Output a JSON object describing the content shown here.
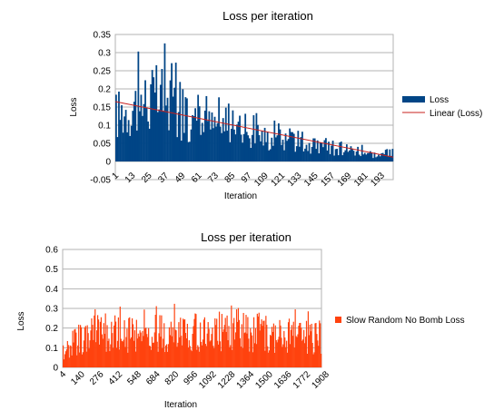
{
  "chart_data": [
    {
      "type": "bar",
      "title": "Loss per iteration",
      "xlabel": "Iteration",
      "ylabel": "Loss",
      "ylim": [
        -0.05,
        0.35
      ],
      "yticks": [
        "-0.05",
        "0",
        "0.05",
        "0.1",
        "0.15",
        "0.2",
        "0.25",
        "0.3",
        "0.35"
      ],
      "xtick_labels": [
        "1",
        "13",
        "25",
        "37",
        "49",
        "61",
        "73",
        "85",
        "97",
        "109",
        "121",
        "133",
        "145",
        "157",
        "169",
        "181",
        "193"
      ],
      "x_start": 1,
      "x_end": 200,
      "grid": true,
      "legend": "right",
      "series": [
        {
          "name": "Loss",
          "color": "#004586",
          "trend_points": [
            [
              1,
              0.16
            ],
            [
              20,
              0.21
            ],
            [
              36,
              0.22
            ],
            [
              55,
              0.13
            ],
            [
              75,
              0.12
            ],
            [
              95,
              0.11
            ],
            [
              110,
              0.08
            ],
            [
              130,
              0.07
            ],
            [
              145,
              0.05
            ],
            [
              160,
              0.045
            ],
            [
              175,
              0.04
            ],
            [
              190,
              0.02
            ],
            [
              200,
              0.03
            ]
          ]
        },
        {
          "name": "Linear (Loss)",
          "color": "#c9211e",
          "line_from": [
            1,
            0.165
          ],
          "line_to": [
            200,
            0.012
          ]
        }
      ]
    },
    {
      "type": "bar",
      "title": "Loss per iteration",
      "xlabel": "Iteration",
      "ylabel": "Loss",
      "ylim": [
        0,
        0.6
      ],
      "yticks": [
        "0",
        "0.1",
        "0.2",
        "0.3",
        "0.4",
        "0.5",
        "0.6"
      ],
      "xtick_labels": [
        "4",
        "140",
        "276",
        "412",
        "548",
        "684",
        "820",
        "956",
        "1092",
        "1228",
        "1364",
        "1500",
        "1636",
        "1772",
        "1908"
      ],
      "x_start": 4,
      "x_end": 2020,
      "grid": true,
      "legend": "right",
      "series": [
        {
          "name": "Slow Random No Bomb Loss",
          "color": "#ff420e",
          "trend_points": [
            [
              4,
              0.08
            ],
            [
              80,
              0.15
            ],
            [
              200,
              0.2
            ],
            [
              500,
              0.21
            ],
            [
              1000,
              0.22
            ],
            [
              1300,
              0.23
            ],
            [
              1600,
              0.21
            ],
            [
              1900,
              0.2
            ],
            [
              2020,
              0.18
            ]
          ]
        }
      ]
    }
  ]
}
